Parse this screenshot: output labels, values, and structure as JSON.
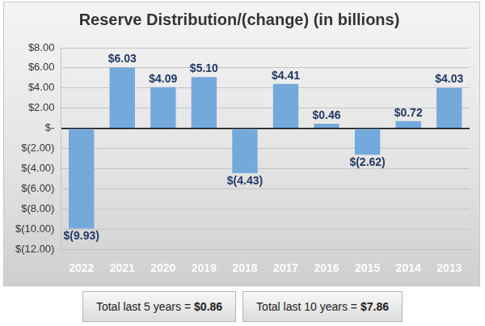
{
  "chart_data": {
    "type": "bar",
    "title": "Reserve Distribution/(change) (in billions)",
    "categories": [
      "2022",
      "2021",
      "2020",
      "2019",
      "2018",
      "2017",
      "2016",
      "2015",
      "2014",
      "2013"
    ],
    "values": [
      -9.93,
      6.03,
      4.09,
      5.1,
      -4.43,
      4.41,
      0.46,
      -2.62,
      0.72,
      4.03
    ],
    "value_labels": [
      "$(9.93)",
      "$6.03",
      "$4.09",
      "$5.10",
      "$(4.43)",
      "$4.41",
      "$0.46",
      "$(2.62)",
      "$0.72",
      "$4.03"
    ],
    "color": "#74a9dc",
    "ylim": [
      -12,
      8
    ],
    "yticks": [
      {
        "value": -12,
        "label": "$(12.00)"
      },
      {
        "value": -10,
        "label": "$(10.00)"
      },
      {
        "value": -8,
        "label": "$(8.00)"
      },
      {
        "value": -6,
        "label": "$(6.00)"
      },
      {
        "value": -4,
        "label": "$(4.00)"
      },
      {
        "value": -2,
        "label": "$(2.00)"
      },
      {
        "value": 0,
        "label": "$-"
      },
      {
        "value": 2,
        "label": "$2.00"
      },
      {
        "value": 4,
        "label": "$4.00"
      },
      {
        "value": 6,
        "label": "$6.00"
      },
      {
        "value": 8,
        "label": "$8.00"
      }
    ],
    "grid": true,
    "data_labels": true,
    "annotations": [
      {
        "label": "Total last 5 years =",
        "value_label": "$0.86"
      },
      {
        "label": "Total last 10 years =",
        "value_label": "$7.86"
      }
    ]
  }
}
